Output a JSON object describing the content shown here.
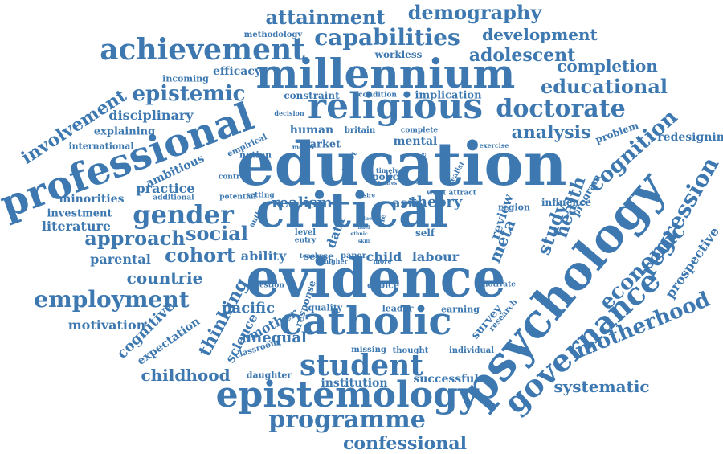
{
  "color": "#3d78b0",
  "words": [
    "education",
    "evidence",
    "critical",
    "millennium",
    "psychology",
    "professional",
    "religious",
    "catholic",
    "epistemology",
    "governance",
    "student",
    "achievement",
    "doctorate",
    "gender",
    "capabilities",
    "attainment",
    "demography",
    "development",
    "adolescent",
    "completion",
    "educational",
    "epistemic",
    "involvement",
    "employment",
    "approach",
    "programme",
    "confessional",
    "cognition",
    "regression",
    "prospective",
    "economic",
    "motherhood",
    "systematic",
    "redesigning",
    "thinking",
    "cognitive",
    "childhood",
    "motivation",
    "social",
    "cohort",
    "countrie",
    "pacific",
    "parental",
    "literature",
    "investment",
    "minorities",
    "practice",
    "ambitious",
    "disciplinary",
    "explaining",
    "international",
    "methodology",
    "efficacy",
    "incoming",
    "workless",
    "constraint",
    "implication",
    "analysis",
    "mental",
    "market",
    "human",
    "britain",
    "condition",
    "decision",
    "complete",
    "problem",
    "exercise",
    "health",
    "study",
    "review",
    "meta",
    "influence",
    "region",
    "program",
    "realism",
    "theory",
    "asia",
    "labour",
    "child",
    "self",
    "data",
    "level",
    "entry",
    "ability",
    "sense",
    "paper",
    "teacher",
    "higher",
    "more",
    "question",
    "response",
    "quality",
    "leader",
    "earning",
    "choice",
    "motivate",
    "survey",
    "research",
    "missing",
    "thought",
    "individual",
    "unequal",
    "daughter",
    "institution",
    "successful",
    "classroom",
    "expectation",
    "science",
    "mother",
    "control",
    "potential",
    "setting",
    "author",
    "additional",
    "empirical",
    "notion",
    "maker",
    "addition",
    "tweet",
    "desire",
    "timely",
    "policy",
    "futures",
    "income",
    "realist",
    "want attract",
    "value",
    "fidel",
    "ethnic",
    "skill",
    "life"
  ]
}
